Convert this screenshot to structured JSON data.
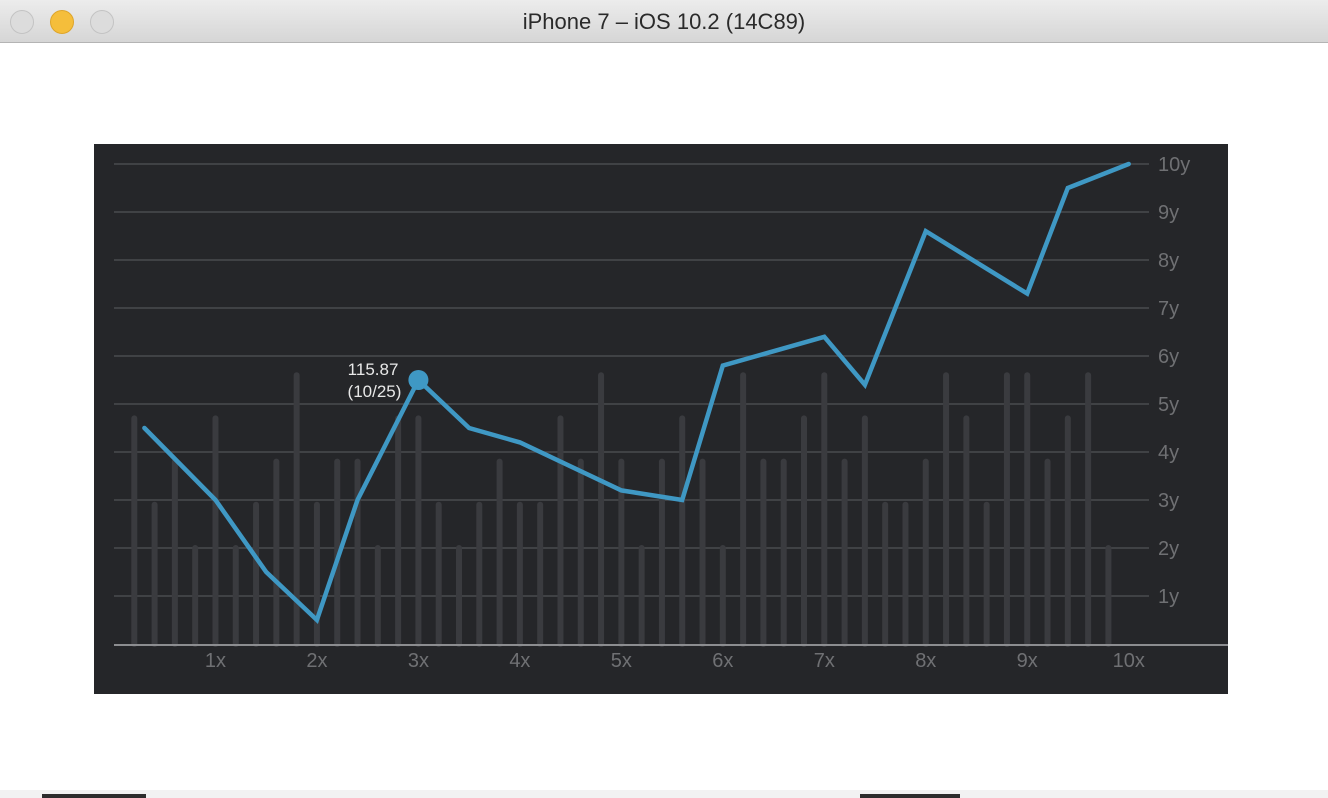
{
  "window": {
    "title": "iPhone 7 – iOS 10.2 (14C89)"
  },
  "colors": {
    "chart_background": "#252629",
    "line": "#3f98c4",
    "grid": "#4a4b4f",
    "bars": "#3a3b3f",
    "axis": "#8c8d90",
    "labels": "#6f7073"
  },
  "chart_data": {
    "type": "line",
    "y_axis_position": "right",
    "xlim": [
      0,
      10.2
    ],
    "ylim": [
      0,
      10
    ],
    "x_ticks": [
      {
        "value": 1,
        "label": "1x"
      },
      {
        "value": 2,
        "label": "2x"
      },
      {
        "value": 3,
        "label": "3x"
      },
      {
        "value": 4,
        "label": "4x"
      },
      {
        "value": 5,
        "label": "5x"
      },
      {
        "value": 6,
        "label": "6x"
      },
      {
        "value": 7,
        "label": "7x"
      },
      {
        "value": 8,
        "label": "8x"
      },
      {
        "value": 9,
        "label": "9x"
      },
      {
        "value": 10,
        "label": "10x"
      }
    ],
    "y_ticks": [
      {
        "value": 1,
        "label": "1y"
      },
      {
        "value": 2,
        "label": "2y"
      },
      {
        "value": 3,
        "label": "3y"
      },
      {
        "value": 4,
        "label": "4y"
      },
      {
        "value": 5,
        "label": "5y"
      },
      {
        "value": 6,
        "label": "6y"
      },
      {
        "value": 7,
        "label": "7y"
      },
      {
        "value": 8,
        "label": "8y"
      },
      {
        "value": 9,
        "label": "9y"
      },
      {
        "value": 10,
        "label": "10y"
      }
    ],
    "grid": true,
    "series": [
      {
        "x": [
          0.3,
          1.0,
          1.5,
          2.0,
          2.4,
          3.0,
          3.5,
          4.0,
          5.0,
          5.6,
          6.0,
          7.0,
          7.4,
          8.0,
          9.0,
          9.4,
          10.0
        ],
        "y": [
          4.5,
          3.0,
          1.5,
          0.5,
          3.0,
          5.5,
          4.5,
          4.2,
          3.2,
          3.0,
          5.8,
          6.4,
          5.4,
          8.6,
          7.3,
          9.5,
          10.0
        ]
      }
    ],
    "background_bars": {
      "x": [
        0.2,
        0.4,
        0.6,
        0.8,
        1.0,
        1.2,
        1.4,
        1.6,
        1.8,
        2.0,
        2.2,
        2.4,
        2.6,
        2.8,
        3.0,
        3.2,
        3.4,
        3.6,
        3.8,
        4.0,
        4.2,
        4.4,
        4.6,
        4.8,
        5.0,
        5.2,
        5.4,
        5.6,
        5.8,
        6.0,
        6.2,
        6.4,
        6.6,
        6.8,
        7.0,
        7.2,
        7.4,
        7.6,
        7.8,
        8.0,
        8.2,
        8.4,
        8.6,
        8.8,
        9.0,
        9.2,
        9.4,
        9.6,
        9.8
      ],
      "y": [
        4.7,
        2.9,
        3.8,
        2.0,
        4.7,
        2.0,
        2.9,
        3.8,
        5.6,
        2.9,
        3.8,
        3.8,
        2.0,
        4.7,
        4.7,
        2.9,
        2.0,
        2.9,
        3.8,
        2.9,
        2.9,
        4.7,
        3.8,
        5.6,
        3.8,
        2.0,
        3.8,
        4.7,
        3.8,
        2.0,
        5.6,
        3.8,
        3.8,
        4.7,
        5.6,
        3.8,
        4.7,
        2.9,
        2.9,
        3.8,
        5.6,
        4.7,
        2.9,
        5.6,
        5.6,
        3.8,
        4.7,
        5.6,
        2.0
      ]
    },
    "highlight": {
      "x": 3.0,
      "y": 5.5,
      "value_label": "115.87",
      "date_label": "(10/25)"
    }
  }
}
